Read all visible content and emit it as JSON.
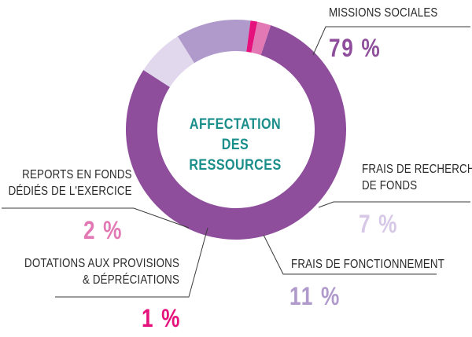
{
  "chart_data": {
    "type": "pie",
    "title": "AFFECTATION DES RESSOURCES",
    "title_lines": [
      "AFFECTATION",
      "DES RESSOURCES"
    ],
    "slices": [
      {
        "key": "missions",
        "label": "MISSIONS SOCIALES",
        "value": 79,
        "display": "79 %",
        "color": "#8e4e9b"
      },
      {
        "key": "recherche",
        "label": "FRAIS DE RECHERCHE DE FONDS",
        "label_lines": [
          "FRAIS DE RECHERCHE",
          "DE FONDS"
        ],
        "value": 7,
        "display": "7 %",
        "color": "#e2d8ee"
      },
      {
        "key": "fonctionnement",
        "label": "FRAIS DE FONCTIONNEMENT",
        "value": 11,
        "display": "11 %",
        "color": "#b09acb"
      },
      {
        "key": "dotations",
        "label": "DOTATIONS AUX PROVISIONS & DÉPRÉCIATIONS",
        "label_lines": [
          "DOTATIONS AUX PROVISIONS",
          "& DÉPRÉCIATIONS"
        ],
        "value": 1,
        "display": "1 %",
        "color": "#e5127d"
      },
      {
        "key": "reports",
        "label": "REPORTS EN FONDS DÉDIÉS DE L'EXERCICE",
        "label_lines": [
          "REPORTS EN FONDS",
          "DÉDIÉS DE L'EXERCICE"
        ],
        "value": 2,
        "display": "2 %",
        "color": "#e279b4"
      }
    ]
  }
}
